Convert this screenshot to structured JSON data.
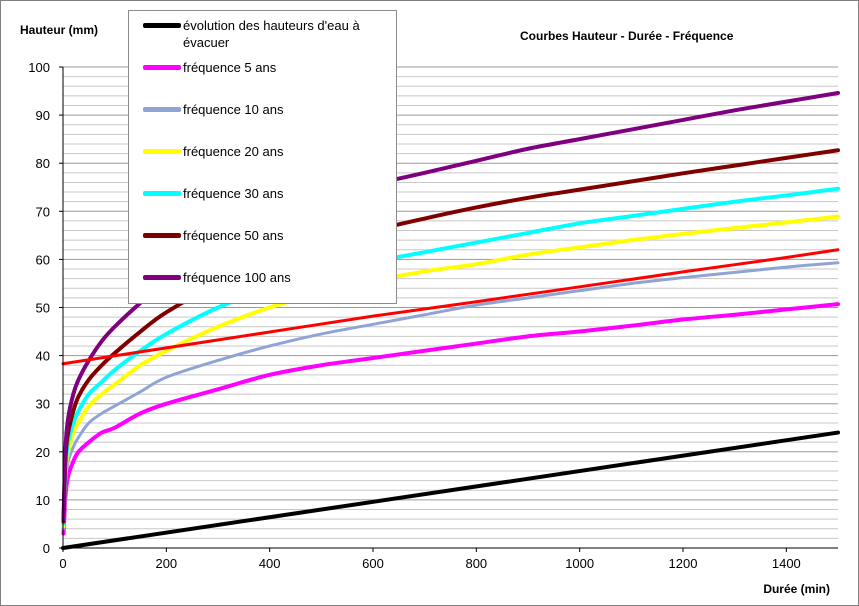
{
  "chart_data": {
    "type": "line",
    "title": "Courbes Hauteur - Durée - Fréquence",
    "xlabel": "Durée (min)",
    "ylabel": "Hauteur (mm)",
    "xlim": [
      0,
      1500
    ],
    "ylim": [
      0,
      100
    ],
    "xticks": [
      "0",
      "200",
      "400",
      "600",
      "800",
      "1000",
      "1200",
      "1400"
    ],
    "yticks": [
      "0",
      "10",
      "20",
      "30",
      "40",
      "50",
      "60",
      "70",
      "80",
      "90",
      "100"
    ],
    "grid": "horizontal minor gridlines every 2 mm",
    "legend_position": "top-left",
    "series": [
      {
        "name": "évolution des hauteurs d'eau à évacuer",
        "color": "#000000",
        "x": [
          0,
          1500
        ],
        "y": [
          0,
          24
        ]
      },
      {
        "name": "fréquence 5 ans",
        "color": "#ff00ff",
        "x": [
          1,
          5,
          10,
          20,
          30,
          50,
          75,
          100,
          150,
          200,
          300,
          400,
          500,
          600,
          700,
          800,
          900,
          1000,
          1100,
          1200,
          1300,
          1400,
          1500
        ],
        "y": [
          3,
          11,
          15,
          18,
          20,
          22,
          24,
          25,
          28,
          30,
          33,
          36,
          38,
          39.5,
          41,
          42.5,
          44,
          45,
          46.2,
          47.5,
          48.5,
          49.6,
          50.7
        ]
      },
      {
        "name": "fréquence 10 ans",
        "color": "#8fa4d4",
        "x": [
          1,
          5,
          10,
          20,
          30,
          50,
          75,
          100,
          150,
          200,
          300,
          400,
          500,
          600,
          700,
          800,
          900,
          1000,
          1100,
          1200,
          1300,
          1400,
          1500
        ],
        "y": [
          4,
          14,
          18,
          21,
          23,
          26,
          28,
          29.5,
          32.5,
          35.5,
          39,
          42,
          44.5,
          46.5,
          48.5,
          50.5,
          52,
          53.5,
          55,
          56.2,
          57.3,
          58.4,
          59.3
        ]
      },
      {
        "name": "fréquence 20 ans",
        "color": "#ffff00",
        "x": [
          1,
          5,
          10,
          20,
          30,
          50,
          75,
          100,
          150,
          200,
          300,
          400,
          500,
          600,
          700,
          800,
          900,
          1000,
          1100,
          1200,
          1300,
          1400,
          1500
        ],
        "y": [
          4.5,
          16,
          20,
          24,
          26,
          29.5,
          32,
          34,
          38,
          41,
          46,
          50,
          53,
          55.5,
          57.5,
          59,
          61,
          62.5,
          64,
          65.3,
          66.5,
          67.7,
          68.9
        ]
      },
      {
        "name": "fréquence 30 ans",
        "color": "#00ffff",
        "x": [
          1,
          5,
          10,
          20,
          30,
          50,
          75,
          100,
          150,
          200,
          300,
          400,
          500,
          600,
          700,
          800,
          900,
          1000,
          1100,
          1200,
          1300,
          1400,
          1500
        ],
        "y": [
          5,
          17,
          22,
          26,
          28.5,
          32,
          34.5,
          37,
          41,
          44.5,
          50,
          54,
          57,
          59.5,
          61.5,
          63.5,
          65.5,
          67.5,
          69,
          70.5,
          72,
          73.3,
          74.7
        ]
      },
      {
        "name": "fréquence 50 ans",
        "color": "#800000",
        "x": [
          1,
          5,
          10,
          20,
          30,
          50,
          75,
          100,
          150,
          200,
          300,
          400,
          500,
          600,
          700,
          800,
          900,
          1000,
          1100,
          1200,
          1300,
          1400,
          1500
        ],
        "y": [
          5.5,
          19,
          24,
          28.5,
          31.5,
          35,
          38,
          40.5,
          45,
          49,
          55,
          59.5,
          63,
          66,
          68.5,
          70.8,
          72.8,
          74.5,
          76.2,
          77.9,
          79.5,
          81.1,
          82.7
        ]
      },
      {
        "name": "fréquence 100 ans",
        "color": "#7f007f",
        "x": [
          1,
          5,
          10,
          20,
          30,
          50,
          75,
          100,
          150,
          200,
          300,
          400,
          500,
          600,
          700,
          800,
          900,
          1000,
          1100,
          1200,
          1300,
          1400,
          1500
        ],
        "y": [
          6,
          21,
          27,
          32,
          35,
          39,
          43,
          46,
          51,
          55.5,
          62.5,
          67.5,
          72,
          75.5,
          78,
          80.5,
          83,
          85,
          87,
          89,
          91,
          92.8,
          94.6
        ]
      },
      {
        "name": "",
        "color": "#ff0000",
        "x": [
          0,
          200,
          400,
          600,
          800,
          1000,
          1200,
          1400,
          1500
        ],
        "y": [
          38.3,
          41.6,
          44.9,
          48.2,
          51.2,
          54.3,
          57.4,
          60.4,
          62
        ]
      }
    ]
  }
}
